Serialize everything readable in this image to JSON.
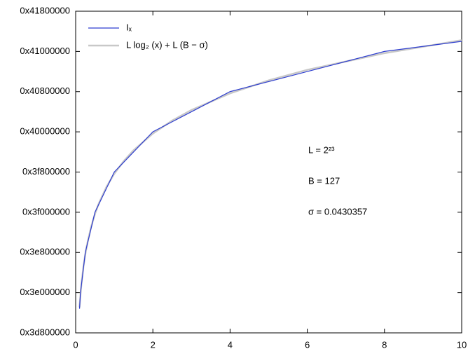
{
  "chart_data": {
    "type": "line",
    "x": [
      0.1,
      0.125,
      0.15,
      0.2,
      0.25,
      0.3,
      0.4,
      0.5,
      0.6,
      0.8,
      1,
      1.25,
      1.5,
      2,
      2.5,
      3,
      4,
      5,
      6,
      8,
      10
    ],
    "series": [
      {
        "name": "Iₓ",
        "color": "#2f3fd0",
        "values": [
          1036831949,
          1040187392,
          1041865114,
          1045220557,
          1048576000,
          1050253722,
          1053609165,
          1056964608,
          1058642330,
          1061997773,
          1065353216,
          1067450368,
          1069547520,
          1073741824,
          1075838976,
          1077936128,
          1082130432,
          1084227584,
          1086324736,
          1090519040,
          1092616192
        ]
      },
      {
        "name": "L log₂ (x) + L (B − σ)",
        "color": "#c8c8c8",
        "values": [
          1037125853,
          1039826381,
          1042032870,
          1045514461,
          1048214989,
          1050421478,
          1053903069,
          1056603597,
          1058810086,
          1062291677,
          1064992205,
          1067692733,
          1069899230,
          1073380813,
          1076081341,
          1078287838,
          1081769421,
          1084469949,
          1086676446,
          1090158029,
          1092858557
        ]
      }
    ],
    "xlim": [
      0,
      10
    ],
    "xticks": [
      0,
      2,
      4,
      6,
      8,
      10
    ],
    "ylim": [
      1031798784,
      1098907648
    ],
    "yticks": [
      {
        "value": 1031798784,
        "label": "0x3d800000"
      },
      {
        "value": 1040187392,
        "label": "0x3e000000"
      },
      {
        "value": 1048576000,
        "label": "0x3e800000"
      },
      {
        "value": 1056964608,
        "label": "0x3f000000"
      },
      {
        "value": 1065353216,
        "label": "0x3f800000"
      },
      {
        "value": 1073741824,
        "label": "0x40000000"
      },
      {
        "value": 1082130432,
        "label": "0x40800000"
      },
      {
        "value": 1090519040,
        "label": "0x41000000"
      },
      {
        "value": 1098907648,
        "label": "0x41800000"
      }
    ],
    "annotations": [
      "L = 2²³",
      "B = 127",
      "σ = 0.0430357"
    ],
    "legend": "top-left"
  }
}
